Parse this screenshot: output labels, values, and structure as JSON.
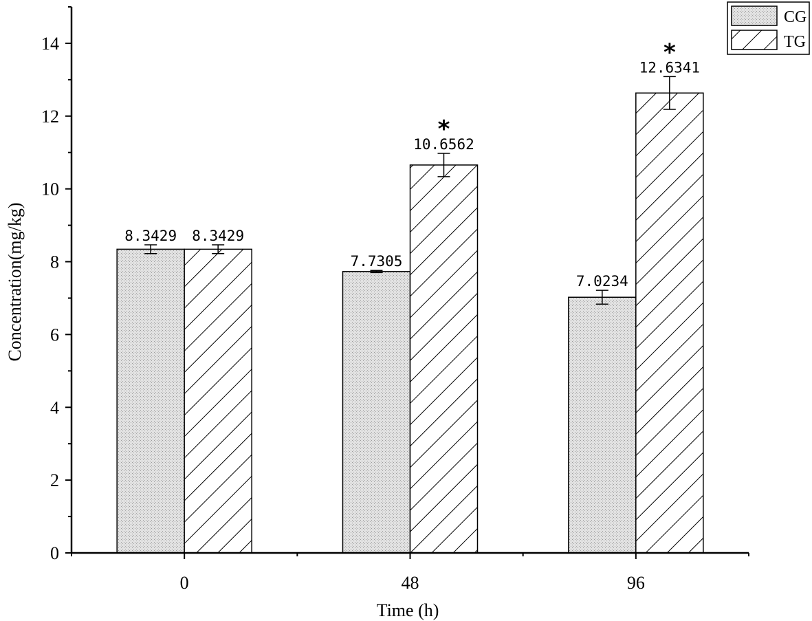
{
  "chart_data": {
    "type": "bar",
    "title": "",
    "xlabel": "Time (h)",
    "ylabel": "Concentration(mg/kg)",
    "categories": [
      "0",
      "48",
      "96"
    ],
    "ylim": [
      0,
      15
    ],
    "yticks": [
      "0",
      "2",
      "4",
      "6",
      "8",
      "10",
      "12",
      "14"
    ],
    "grid": false,
    "legend_position": "top-right",
    "series": [
      {
        "name": "CG",
        "pattern": "dotted-gray",
        "values": [
          8.3429,
          7.7305,
          7.0234
        ],
        "errors": [
          0.12,
          0.03,
          0.19
        ],
        "labels": [
          "8.3429",
          "7.7305",
          "7.0234"
        ],
        "significance": [
          "",
          "",
          ""
        ]
      },
      {
        "name": "TG",
        "pattern": "diagonal-hatch",
        "values": [
          8.3429,
          10.6562,
          12.6341
        ],
        "errors": [
          0.12,
          0.32,
          0.45
        ],
        "labels": [
          "8.3429",
          "10.6562",
          "12.6341"
        ],
        "significance": [
          "",
          "*",
          "*"
        ]
      }
    ],
    "colors": {
      "axis": "#000000",
      "cg_fill": "#d9d9d9",
      "tg_fill": "#ffffff"
    }
  }
}
